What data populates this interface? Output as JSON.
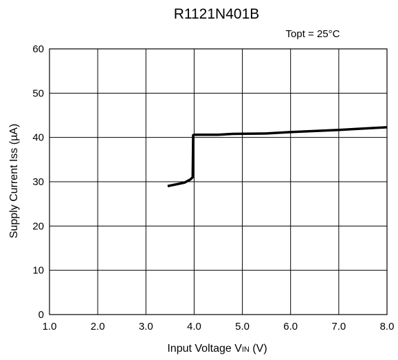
{
  "chart_data": {
    "type": "line",
    "title": "R1121N401B",
    "condition": "Topt = 25°C",
    "xlabel": {
      "main": "Input Voltage V",
      "sub": "IN",
      "tail": " (V)"
    },
    "ylabel": "Supply Current Iss (µA)",
    "xlim": [
      1.0,
      8.0
    ],
    "ylim": [
      0,
      60
    ],
    "xticks": [
      1.0,
      2.0,
      3.0,
      4.0,
      5.0,
      6.0,
      7.0,
      8.0
    ],
    "xtick_labels": [
      "1.0",
      "2.0",
      "3.0",
      "4.0",
      "5.0",
      "6.0",
      "7.0",
      "8.0"
    ],
    "yticks": [
      0,
      10,
      20,
      30,
      40,
      50,
      60
    ],
    "ytick_labels": [
      "0",
      "10",
      "20",
      "30",
      "40",
      "50",
      "60"
    ],
    "grid": true,
    "series": [
      {
        "color": "#000000",
        "x": [
          3.45,
          3.8,
          3.92,
          3.97,
          3.98,
          4.0,
          4.5,
          4.8,
          5.5,
          6.0,
          7.0,
          8.0
        ],
        "y": [
          29.0,
          29.8,
          30.5,
          31.0,
          40.5,
          40.6,
          40.6,
          40.8,
          40.9,
          41.2,
          41.7,
          42.3
        ]
      }
    ]
  }
}
